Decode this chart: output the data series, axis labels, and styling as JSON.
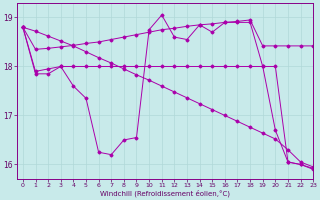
{
  "background_color": "#c8eaea",
  "grid_color": "#b0d8d8",
  "line_color": "#aa00aa",
  "xlim": [
    -0.5,
    23
  ],
  "ylim": [
    15.7,
    19.3
  ],
  "yticks": [
    16,
    17,
    18,
    19
  ],
  "xticks": [
    0,
    1,
    2,
    3,
    4,
    5,
    6,
    7,
    8,
    9,
    10,
    11,
    12,
    13,
    14,
    15,
    16,
    17,
    18,
    19,
    20,
    21,
    22,
    23
  ],
  "xlabel": "Windchill (Refroidissement éolien,°C)",
  "series": [
    {
      "x": [
        0,
        1,
        2,
        3,
        4,
        5,
        6,
        7,
        8,
        9,
        10,
        11,
        12,
        13,
        14,
        15,
        16,
        17,
        18,
        19,
        20,
        21,
        22,
        23
      ],
      "y": [
        18.8,
        18.35,
        18.37,
        18.4,
        18.43,
        18.47,
        18.5,
        18.55,
        18.6,
        18.65,
        18.7,
        18.75,
        18.78,
        18.82,
        18.85,
        18.87,
        18.9,
        18.92,
        18.95,
        18.42,
        18.42,
        18.42,
        18.42,
        18.42
      ]
    },
    {
      "x": [
        0,
        1,
        2,
        3,
        4,
        5,
        6,
        7,
        8,
        9,
        10,
        11,
        12,
        13,
        14,
        15,
        16,
        17,
        18,
        19,
        20,
        21,
        22,
        23
      ],
      "y": [
        18.8,
        17.85,
        17.85,
        18.0,
        17.6,
        17.35,
        16.25,
        16.2,
        16.5,
        16.55,
        18.75,
        19.05,
        18.6,
        18.55,
        18.85,
        18.7,
        18.9,
        18.9,
        18.9,
        18.0,
        16.7,
        16.05,
        16.0,
        15.9
      ]
    },
    {
      "x": [
        0,
        1,
        2,
        3,
        4,
        5,
        6,
        7,
        8,
        9,
        10,
        11,
        12,
        13,
        14,
        15,
        16,
        17,
        18,
        19,
        20,
        21,
        22,
        23
      ],
      "y": [
        18.8,
        18.72,
        18.62,
        18.52,
        18.42,
        18.3,
        18.18,
        18.07,
        17.95,
        17.83,
        17.72,
        17.6,
        17.48,
        17.36,
        17.24,
        17.12,
        17.0,
        16.88,
        16.76,
        16.64,
        16.52,
        16.3,
        16.05,
        15.95
      ]
    },
    {
      "x": [
        0,
        1,
        2,
        3,
        4,
        5,
        6,
        7,
        8,
        9,
        10,
        11,
        12,
        13,
        14,
        15,
        16,
        17,
        18,
        19,
        20,
        21,
        22,
        23
      ],
      "y": [
        18.8,
        17.9,
        17.95,
        18.0,
        18.0,
        18.0,
        18.0,
        18.0,
        18.0,
        18.0,
        18.0,
        18.0,
        18.0,
        18.0,
        18.0,
        18.0,
        18.0,
        18.0,
        18.0,
        18.0,
        18.0,
        16.05,
        16.0,
        15.92
      ]
    }
  ]
}
